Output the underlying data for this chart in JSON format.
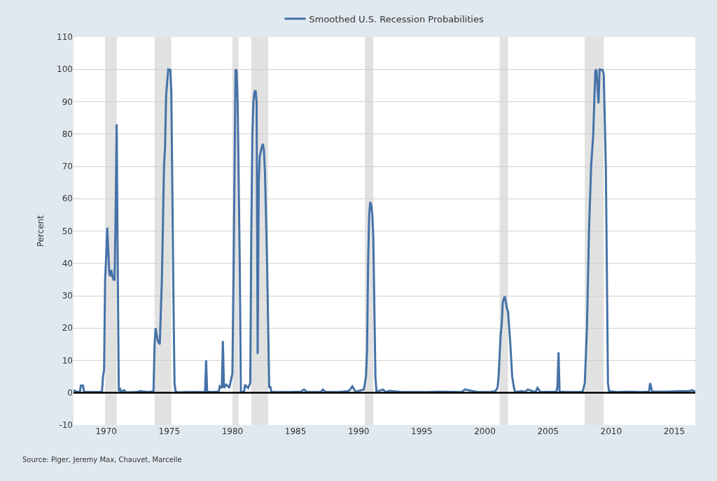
{
  "chart_data": {
    "type": "line",
    "ylabel": "Percent",
    "legend": "top",
    "grid": "y",
    "line_style": "solid",
    "marker": "none",
    "annotations": [
      "Source: Piger, Jeremy Max, Chauvet, Marcelle"
    ],
    "xlim": [
      "1967-06",
      "2016-09"
    ],
    "xticks": [
      "1970",
      "1975",
      "1980",
      "1985",
      "1990",
      "1995",
      "2000",
      "2005",
      "2010",
      "2015"
    ],
    "ylim": [
      -10,
      110
    ],
    "yticks": [
      -10,
      0,
      10,
      20,
      30,
      40,
      50,
      60,
      70,
      80,
      90,
      100,
      110
    ],
    "ref_lines": [
      {
        "axis": "y",
        "value": 0,
        "color": "#000000"
      }
    ],
    "bands": [
      {
        "axis": "x",
        "from": "1969-12",
        "to": "1970-11",
        "color": "#e1e1e1"
      },
      {
        "axis": "x",
        "from": "1973-11",
        "to": "1975-03",
        "color": "#e1e1e1"
      },
      {
        "axis": "x",
        "from": "1980-01",
        "to": "1980-07",
        "color": "#e1e1e1"
      },
      {
        "axis": "x",
        "from": "1981-07",
        "to": "1982-11",
        "color": "#e1e1e1"
      },
      {
        "axis": "x",
        "from": "1990-07",
        "to": "1991-03",
        "color": "#e1e1e1"
      },
      {
        "axis": "x",
        "from": "2001-03",
        "to": "2001-11",
        "color": "#e1e1e1"
      },
      {
        "axis": "x",
        "from": "2007-12",
        "to": "2009-06",
        "color": "#e1e1e1"
      }
    ],
    "series": [
      {
        "name": "Smoothed U.S. Recession Probabilities",
        "color": "#4572a7",
        "x": [
          "1967-06",
          "1967-09",
          "1967-12",
          "1968-01",
          "1968-03",
          "1968-04",
          "1969-06",
          "1969-09",
          "1969-10",
          "1969-11",
          "1969-12",
          "1970-01",
          "1970-02",
          "1970-04",
          "1970-05",
          "1970-06",
          "1970-07",
          "1970-08",
          "1970-09",
          "1970-10",
          "1970-11",
          "1970-12",
          "1971-01",
          "1971-02",
          "1971-03",
          "1971-06",
          "1971-08",
          "1972-06",
          "1972-09",
          "1973-06",
          "1973-09",
          "1973-10",
          "1973-11",
          "1973-12",
          "1974-02",
          "1974-04",
          "1974-06",
          "1974-08",
          "1974-09",
          "1974-10",
          "1974-12",
          "1975-02",
          "1975-03",
          "1975-05",
          "1975-06",
          "1975-07",
          "1975-09",
          "1976-06",
          "1977-01",
          "1977-11",
          "1977-12",
          "1978-01",
          "1978-06",
          "1978-12",
          "1979-01",
          "1979-03",
          "1979-04",
          "1979-05",
          "1979-07",
          "1979-09",
          "1979-10",
          "1980-01",
          "1980-02",
          "1980-04",
          "1980-05",
          "1980-06",
          "1980-08",
          "1980-09",
          "1980-12",
          "1981-01",
          "1981-02",
          "1981-04",
          "1981-06",
          "1981-07",
          "1981-08",
          "1981-09",
          "1981-10",
          "1981-11",
          "1981-12",
          "1982-01",
          "1982-02",
          "1982-03",
          "1982-05",
          "1982-06",
          "1982-07",
          "1982-08",
          "1982-10",
          "1982-12",
          "1983-01",
          "1983-02",
          "1984-06",
          "1985-06",
          "1985-09",
          "1985-12",
          "1987-01",
          "1987-03",
          "1987-06",
          "1988-06",
          "1989-03",
          "1989-05",
          "1989-07",
          "1989-10",
          "1990-06",
          "1990-08",
          "1990-09",
          "1990-10",
          "1990-11",
          "1990-12",
          "1991-01",
          "1991-02",
          "1991-03",
          "1991-05",
          "1991-06",
          "1991-12",
          "1992-03",
          "1992-06",
          "1993-06",
          "1995-06",
          "1996-06",
          "1998-03",
          "1998-06",
          "1999-06",
          "2000-06",
          "2000-11",
          "2001-01",
          "2001-02",
          "2001-04",
          "2001-05",
          "2001-06",
          "2001-07",
          "2001-08",
          "2001-10",
          "2001-11",
          "2002-01",
          "2002-03",
          "2002-05",
          "2002-06",
          "2002-12",
          "2003-03",
          "2003-06",
          "2004-01",
          "2004-03",
          "2004-06",
          "2005-09",
          "2005-10",
          "2005-11",
          "2005-12",
          "2006-06",
          "2007-06",
          "2007-10",
          "2007-12",
          "2008-02",
          "2008-04",
          "2008-06",
          "2008-08",
          "2008-09",
          "2008-10",
          "2008-11",
          "2009-01",
          "2009-02",
          "2009-05",
          "2009-06",
          "2009-08",
          "2009-10",
          "2009-11",
          "2010-06",
          "2011-06",
          "2012-06",
          "2013-01",
          "2013-02",
          "2013-04",
          "2014-06",
          "2015-06",
          "2016-03",
          "2016-06",
          "2016-09"
        ],
        "values": [
          0.8,
          0.3,
          0.2,
          2.2,
          2.2,
          0.2,
          0.2,
          0.3,
          5,
          7,
          35,
          42,
          51,
          37,
          36,
          38,
          36,
          35,
          35,
          55,
          83,
          40,
          0.5,
          1.5,
          0.3,
          0.8,
          0.1,
          0.2,
          0.5,
          0.2,
          0.4,
          0.3,
          15,
          20,
          16,
          15,
          35,
          70,
          76,
          92,
          100,
          99.8,
          93,
          30,
          3,
          0.5,
          0.1,
          0.2,
          0.2,
          0.2,
          10,
          0.3,
          0.2,
          0.3,
          2,
          1.5,
          16,
          1.5,
          2.5,
          2,
          1.5,
          6,
          35,
          100,
          99.5,
          90,
          40,
          0.3,
          0.2,
          2.5,
          2,
          1.5,
          3,
          50,
          80,
          90,
          93,
          93.5,
          90,
          12,
          65,
          73,
          76,
          77,
          75,
          68,
          40,
          1.5,
          2,
          0.2,
          0.2,
          0.3,
          1,
          0.2,
          0.2,
          1,
          0.2,
          0.2,
          0.5,
          1,
          2,
          0.3,
          1,
          5,
          13,
          40,
          55,
          59,
          58,
          55,
          48,
          5,
          0.3,
          1,
          0.2,
          0.6,
          0.2,
          0.2,
          0.3,
          0.2,
          1,
          0.2,
          0.2,
          0.5,
          1.5,
          5,
          18,
          21,
          28,
          29,
          29.8,
          26,
          25,
          16,
          5,
          1,
          0.2,
          0.5,
          0.3,
          1,
          0.2,
          1.5,
          0.2,
          0.3,
          2,
          12.5,
          0.3,
          0.2,
          0.2,
          0.3,
          3,
          20,
          50,
          70,
          80,
          90,
          99.5,
          100,
          89.5,
          100,
          99.8,
          98.5,
          70,
          3,
          0.5,
          0.2,
          0.3,
          0.2,
          0.3,
          3,
          0.3,
          0.3,
          0.5,
          0.5,
          0.8,
          0.3
        ]
      }
    ]
  }
}
